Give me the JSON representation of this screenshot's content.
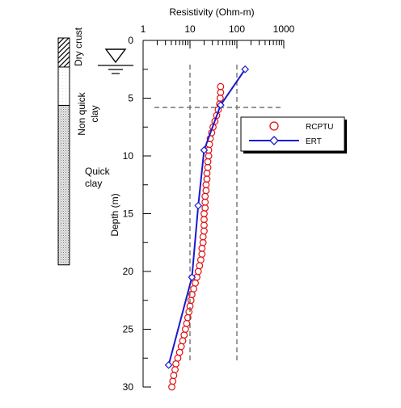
{
  "chart_data": {
    "type": "scatter",
    "title": "",
    "xlabel": "Resistivity (Ohm-m)",
    "ylabel": "Depth (m)",
    "x_scale": "log",
    "x_axis_position": "top",
    "xlim": [
      1,
      1000
    ],
    "ylim": [
      0,
      30
    ],
    "y_inverted": true,
    "x_ticks": [
      "1",
      "10",
      "100",
      "1000"
    ],
    "y_ticks": [
      "0",
      "5",
      "10",
      "15",
      "20",
      "25",
      "30"
    ],
    "grid": false,
    "reference_lines": {
      "vertical_x": [
        10,
        100
      ],
      "horizontal_depth": [
        5.8
      ]
    },
    "legend": {
      "placement": "right",
      "entries": [
        "RCPTU",
        "ERT"
      ]
    },
    "series": [
      {
        "name": "RCPTU",
        "marker": "circle",
        "color": "#e01010",
        "points": [
          [
            45,
            4.0
          ],
          [
            45,
            4.5
          ],
          [
            44,
            5.0
          ],
          [
            43,
            5.5
          ],
          [
            40,
            6.0
          ],
          [
            37,
            6.5
          ],
          [
            34,
            7.0
          ],
          [
            31,
            7.5
          ],
          [
            29,
            8.0
          ],
          [
            27,
            8.5
          ],
          [
            26,
            9.0
          ],
          [
            25,
            9.5
          ],
          [
            25,
            10.0
          ],
          [
            24,
            10.5
          ],
          [
            24,
            11.0
          ],
          [
            23,
            11.5
          ],
          [
            23,
            12.0
          ],
          [
            22,
            12.5
          ],
          [
            22,
            13.0
          ],
          [
            21,
            13.5
          ],
          [
            21,
            14.0
          ],
          [
            21,
            14.5
          ],
          [
            20,
            15.0
          ],
          [
            20,
            15.5
          ],
          [
            20,
            16.0
          ],
          [
            20,
            16.5
          ],
          [
            19,
            17.0
          ],
          [
            19,
            17.5
          ],
          [
            18,
            18.0
          ],
          [
            18,
            18.5
          ],
          [
            17,
            19.0
          ],
          [
            16,
            19.5
          ],
          [
            15,
            20.0
          ],
          [
            14,
            20.5
          ],
          [
            13,
            21.0
          ],
          [
            12,
            21.5
          ],
          [
            11,
            22.0
          ],
          [
            10.5,
            22.5
          ],
          [
            10,
            23.0
          ],
          [
            9.5,
            23.5
          ],
          [
            9,
            24.0
          ],
          [
            8.5,
            24.5
          ],
          [
            8,
            25.0
          ],
          [
            7.5,
            25.5
          ],
          [
            7,
            26.0
          ],
          [
            6.5,
            26.5
          ],
          [
            6,
            27.0
          ],
          [
            5.5,
            27.5
          ],
          [
            5,
            28.0
          ],
          [
            4.8,
            28.5
          ],
          [
            4.5,
            29.0
          ],
          [
            4.3,
            29.5
          ],
          [
            4.1,
            30.0
          ]
        ]
      },
      {
        "name": "ERT",
        "marker": "diamond",
        "color": "#1a1ad0",
        "points": [
          [
            150,
            2.5
          ],
          [
            45,
            5.6
          ],
          [
            20,
            9.5
          ],
          [
            15,
            14.3
          ],
          [
            11,
            20.5
          ],
          [
            3.5,
            28.1
          ]
        ]
      }
    ]
  },
  "stratigraphy": {
    "layers": [
      {
        "name": "Dry crust",
        "top": 0,
        "bottom": 2.5,
        "fill": "hatch"
      },
      {
        "name": "Non quick clay",
        "top": 2.5,
        "bottom": 5.8,
        "fill": "light"
      },
      {
        "name": "Quick clay",
        "top": 5.8,
        "bottom": 19.5,
        "fill": "dots"
      }
    ],
    "groundwater_symbol": "water-table-icon"
  }
}
